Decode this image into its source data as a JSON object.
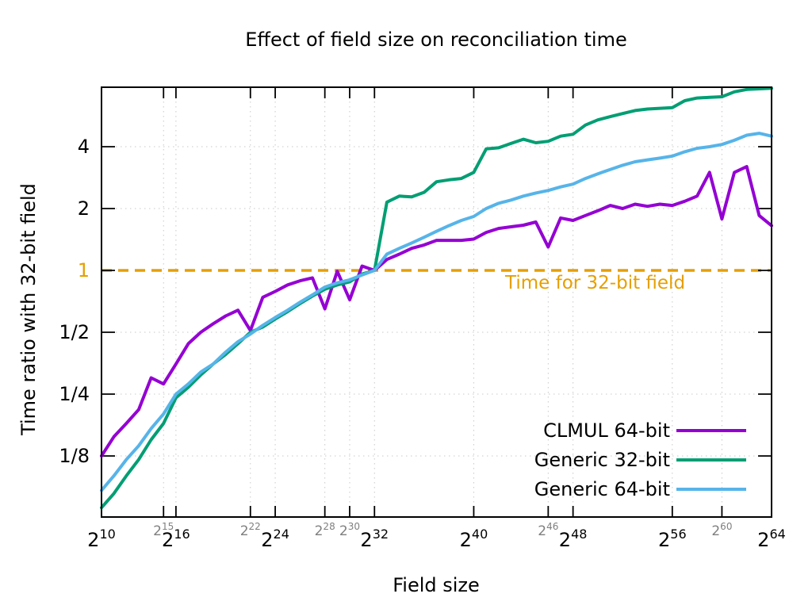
{
  "chart_data": {
    "type": "line",
    "title": "Effect of field size on reconciliation time",
    "xlabel": "Field size",
    "ylabel": "Time ratio with 32-bit field",
    "x_scale": "log2",
    "y_scale": "log2",
    "grid": true,
    "x_tick_format": "2^n",
    "x_range_exp": [
      10,
      64
    ],
    "y_range": [
      0.0625,
      7.8
    ],
    "x_ticks_major_exp": [
      10,
      16,
      24,
      32,
      40,
      48,
      56,
      64
    ],
    "x_ticks_minor_exp": [
      15,
      22,
      28,
      30,
      46,
      60
    ],
    "y_ticks": [
      {
        "value": 4,
        "label": "4",
        "highlight": false
      },
      {
        "value": 2,
        "label": "2",
        "highlight": false
      },
      {
        "value": 1,
        "label": "1",
        "highlight": true
      },
      {
        "value": 0.5,
        "label": "1/2",
        "highlight": false
      },
      {
        "value": 0.25,
        "label": "1/4",
        "highlight": false
      },
      {
        "value": 0.125,
        "label": "1/8",
        "highlight": false
      }
    ],
    "reference_line": {
      "value": 1,
      "label": "Time for 32-bit field",
      "color": "#e69f00",
      "style": "dashed"
    },
    "legend_position": "bottom-right",
    "x_exp": [
      10,
      11,
      12,
      13,
      14,
      15,
      16,
      17,
      18,
      19,
      20,
      21,
      22,
      23,
      24,
      25,
      26,
      27,
      28,
      29,
      30,
      31,
      32,
      33,
      34,
      35,
      36,
      37,
      38,
      39,
      40,
      41,
      42,
      43,
      44,
      45,
      46,
      47,
      48,
      49,
      50,
      51,
      52,
      53,
      54,
      55,
      56,
      57,
      58,
      59,
      60,
      61,
      62,
      63,
      64
    ],
    "series": [
      {
        "name": "CLMUL 64-bit",
        "color": "#9400d3",
        "values": [
          0.125,
          0.155,
          0.18,
          0.21,
          0.3,
          0.28,
          0.35,
          0.44,
          0.5,
          0.55,
          0.6,
          0.64,
          0.51,
          0.74,
          0.79,
          0.85,
          0.89,
          0.92,
          0.65,
          0.99,
          0.72,
          1.05,
          1.0,
          1.13,
          1.2,
          1.28,
          1.33,
          1.4,
          1.4,
          1.4,
          1.42,
          1.53,
          1.6,
          1.63,
          1.66,
          1.72,
          1.3,
          1.8,
          1.75,
          1.85,
          1.95,
          2.07,
          2.0,
          2.1,
          2.05,
          2.1,
          2.07,
          2.17,
          2.3,
          3.0,
          1.78,
          3.0,
          3.2,
          1.85,
          1.65
        ]
      },
      {
        "name": "Generic 32-bit",
        "color": "#009e73",
        "values": [
          0.07,
          0.082,
          0.1,
          0.12,
          0.15,
          0.18,
          0.24,
          0.27,
          0.31,
          0.35,
          0.39,
          0.44,
          0.5,
          0.53,
          0.58,
          0.63,
          0.69,
          0.75,
          0.81,
          0.85,
          0.88,
          0.96,
          1.0,
          2.15,
          2.3,
          2.28,
          2.4,
          2.7,
          2.76,
          2.8,
          3.0,
          3.9,
          3.95,
          4.15,
          4.35,
          4.18,
          4.25,
          4.5,
          4.6,
          5.1,
          5.4,
          5.6,
          5.8,
          6.0,
          6.1,
          6.15,
          6.2,
          6.7,
          6.9,
          6.95,
          7.0,
          7.4,
          7.6,
          7.65,
          7.7
        ]
      },
      {
        "name": "Generic 64-bit",
        "color": "#56b4e9",
        "values": [
          0.085,
          0.1,
          0.12,
          0.14,
          0.17,
          0.2,
          0.25,
          0.28,
          0.32,
          0.35,
          0.4,
          0.45,
          0.49,
          0.54,
          0.59,
          0.64,
          0.7,
          0.76,
          0.83,
          0.87,
          0.9,
          0.95,
          1.0,
          1.2,
          1.28,
          1.36,
          1.45,
          1.55,
          1.65,
          1.75,
          1.83,
          2.0,
          2.12,
          2.2,
          2.3,
          2.38,
          2.45,
          2.55,
          2.63,
          2.8,
          2.95,
          3.1,
          3.25,
          3.38,
          3.45,
          3.52,
          3.6,
          3.78,
          3.93,
          4.0,
          4.1,
          4.3,
          4.55,
          4.65,
          4.5
        ]
      }
    ]
  },
  "colors": {
    "background": "#ffffff",
    "axis": "#000000",
    "grid": "#c9c9c9",
    "minor_tick_label": "#7f7f7f",
    "reference": "#e69f00"
  }
}
